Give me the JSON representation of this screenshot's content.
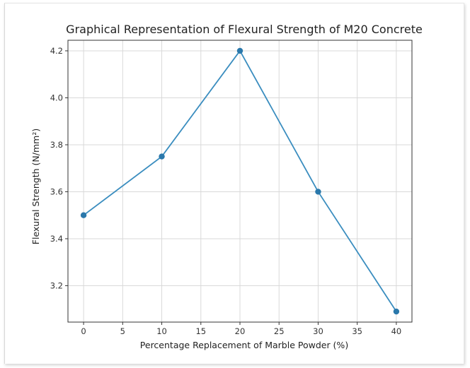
{
  "chart_data": {
    "type": "line",
    "title": "Graphical Representation of Flexural Strength of M20 Concrete",
    "xlabel": "Percentage Replacement of Marble Powder (%)",
    "ylabel": "Flexural Strength (N/mm²)",
    "x": [
      0,
      10,
      20,
      30,
      40
    ],
    "series": [
      {
        "values": [
          3.5,
          3.75,
          4.2,
          3.6,
          3.09
        ]
      }
    ],
    "xlim": [
      -2,
      42
    ],
    "ylim": [
      3.045,
      4.245
    ],
    "xticks": [
      0,
      5,
      10,
      15,
      20,
      25,
      30,
      35,
      40
    ],
    "yticks": [
      3.2,
      3.4,
      3.6,
      3.8,
      4.0,
      4.2
    ],
    "xtick_labels": [
      "0",
      "5",
      "10",
      "15",
      "20",
      "25",
      "30",
      "35",
      "40"
    ],
    "ytick_labels": [
      "3.2",
      "3.4",
      "3.6",
      "3.8",
      "4.0",
      "4.2"
    ],
    "grid": true,
    "line_color": "#3a8dbf",
    "marker_color": "#2a78ab"
  }
}
